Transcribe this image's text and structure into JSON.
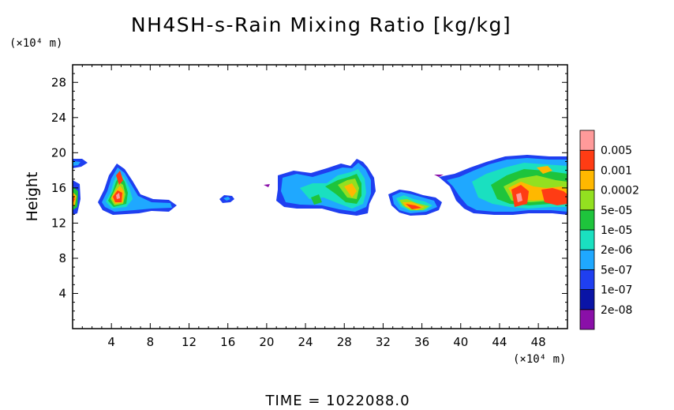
{
  "chart_data": {
    "type": "heatmap",
    "title": "NH4SH-s-Rain Mixing Ratio [kg/kg]",
    "xlabel": "",
    "ylabel": "Height",
    "x_unit_label": "(×10⁴ m)",
    "y_unit_label": "(×10⁴ m)",
    "footer": "TIME =  1022088.0",
    "xlim": [
      0,
      51
    ],
    "ylim": [
      0,
      30
    ],
    "x_ticks": [
      4,
      8,
      12,
      16,
      20,
      24,
      28,
      32,
      36,
      40,
      44,
      48
    ],
    "y_ticks": [
      4,
      8,
      12,
      16,
      20,
      24,
      28
    ],
    "colorbar": {
      "levels": [
        {
          "label": "",
          "color": "#8a0fa8"
        },
        {
          "label": "2e-08",
          "color": "#0a14a6"
        },
        {
          "label": "1e-07",
          "color": "#1f3ff0"
        },
        {
          "label": "5e-07",
          "color": "#1fa8ff"
        },
        {
          "label": "2e-06",
          "color": "#1ae0c0"
        },
        {
          "label": "1e-05",
          "color": "#1ec43c"
        },
        {
          "label": "5e-05",
          "color": "#93e020"
        },
        {
          "label": "0.0002",
          "color": "#ffb800"
        },
        {
          "label": "0.001",
          "color": "#ff3c14"
        },
        {
          "label": "0.005",
          "color": "#ff9a9a"
        }
      ]
    },
    "regions": [
      {
        "x": [
          0,
          1.8
        ],
        "y": [
          18.0,
          19.4
        ],
        "level": 4
      },
      {
        "x": [
          0,
          1.0
        ],
        "y": [
          12.6,
          16.4
        ],
        "level": 6
      },
      {
        "x": [
          2.8,
          10.8
        ],
        "y": [
          12.6,
          18.6
        ],
        "level": 8
      },
      {
        "x": [
          15.3,
          16.7
        ],
        "y": [
          14.2,
          15.2
        ],
        "level": 3
      },
      {
        "x": [
          19.8,
          31.2
        ],
        "y": [
          12.6,
          19.2
        ],
        "level": 6
      },
      {
        "x": [
          32.8,
          38.8
        ],
        "y": [
          12.6,
          16.0
        ],
        "level": 8
      },
      {
        "x": [
          39.2,
          51
        ],
        "y": [
          12.6,
          19.8
        ],
        "level": 8
      }
    ]
  }
}
